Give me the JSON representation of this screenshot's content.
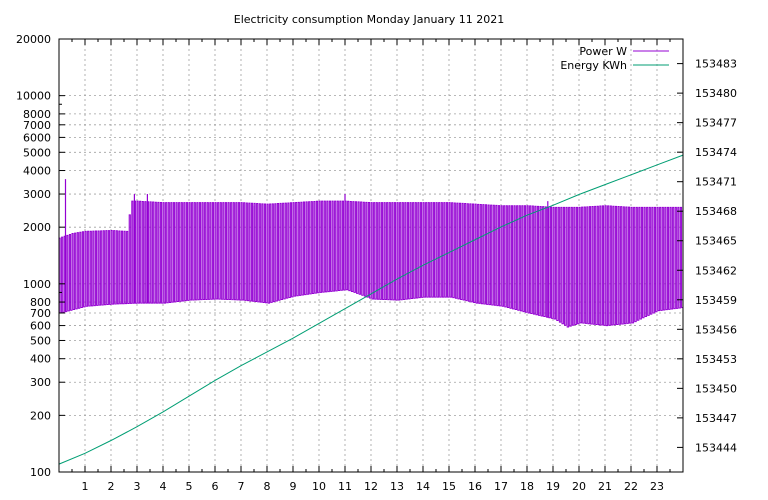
{
  "chart_data": {
    "type": "line",
    "title": "Electricity consumption Monday January 11 2021",
    "xlabel": "",
    "ylabel": "",
    "y2label": "",
    "x_range": [
      0,
      24
    ],
    "x_ticks": [
      1,
      2,
      3,
      4,
      5,
      6,
      7,
      8,
      9,
      10,
      11,
      12,
      13,
      14,
      15,
      16,
      17,
      18,
      19,
      20,
      21,
      22,
      23
    ],
    "y_scale": "log",
    "y_range": [
      100,
      20000
    ],
    "y_ticks": [
      {
        "value": 100,
        "label": "100"
      },
      {
        "value": 200,
        "label": "200"
      },
      {
        "value": 300,
        "label": "300"
      },
      {
        "value": 400,
        "label": "400"
      },
      {
        "value": 500,
        "label": "500"
      },
      {
        "value": 600,
        "label": "600"
      },
      {
        "value": 700,
        "label": "700"
      },
      {
        "value": 800,
        "label": "800"
      },
      {
        "value": 1000,
        "label": "1000"
      },
      {
        "value": 2000,
        "label": "2000"
      },
      {
        "value": 3000,
        "label": "3000"
      },
      {
        "value": 4000,
        "label": "4000"
      },
      {
        "value": 5000,
        "label": "5000"
      },
      {
        "value": 6000,
        "label": "6000"
      },
      {
        "value": 7000,
        "label": "7000"
      },
      {
        "value": 8000,
        "label": "8000"
      },
      {
        "value": 10000,
        "label": "10000"
      },
      {
        "value": 20000,
        "label": "20000"
      }
    ],
    "y2_scale": "linear",
    "y2_range": [
      153441.5,
      153485.5
    ],
    "y2_ticks": [
      153444,
      153447,
      153450,
      153453,
      153456,
      153459,
      153462,
      153465,
      153468,
      153471,
      153474,
      153477,
      153480,
      153483
    ],
    "grid": true,
    "legend": "top-right",
    "series": [
      {
        "name": "Power W",
        "axis": "y",
        "color": "#9400d3",
        "style": "oscillating",
        "cycle_hours": 0.1,
        "high_profile": {
          "x": [
            0,
            0.5,
            1,
            2,
            2.6,
            2.8,
            3,
            4,
            5,
            6,
            7,
            8,
            9,
            10,
            11,
            12,
            13,
            14,
            15,
            16,
            17,
            18,
            19,
            20,
            21,
            22,
            23,
            24
          ],
          "y": [
            1750,
            1850,
            1900,
            1920,
            1900,
            2750,
            2750,
            2700,
            2700,
            2700,
            2700,
            2650,
            2700,
            2750,
            2750,
            2700,
            2700,
            2700,
            2700,
            2650,
            2600,
            2600,
            2550,
            2550,
            2600,
            2550,
            2550,
            2550
          ]
        },
        "low_profile": {
          "x": [
            0,
            1,
            2,
            3,
            4,
            5,
            6,
            7,
            8,
            9,
            10,
            11,
            12,
            13,
            14,
            15,
            16,
            17,
            18,
            19,
            19.5,
            20,
            21,
            22,
            23,
            24
          ],
          "y": [
            700,
            760,
            780,
            790,
            790,
            820,
            830,
            820,
            790,
            860,
            900,
            930,
            830,
            820,
            850,
            850,
            790,
            760,
            700,
            650,
            590,
            620,
            600,
            620,
            720,
            750
          ]
        },
        "spikes": [
          {
            "x": 0.25,
            "y": 3600
          },
          {
            "x": 2.9,
            "y": 3000
          },
          {
            "x": 3.4,
            "y": 3000
          },
          {
            "x": 11.0,
            "y": 3000
          },
          {
            "x": 7.5,
            "y": 2600
          },
          {
            "x": 18.8,
            "y": 2750
          }
        ]
      },
      {
        "name": "Energy KWh",
        "axis": "y2",
        "color": "#009e73",
        "x": [
          0,
          1,
          2,
          3,
          4,
          5,
          6,
          7,
          8,
          9,
          10,
          11,
          12,
          13,
          14,
          15,
          16,
          17,
          18,
          19,
          20,
          21,
          22,
          23,
          24
        ],
        "y": [
          153442.3,
          153443.4,
          153444.7,
          153446.1,
          153447.6,
          153449.2,
          153450.8,
          153452.3,
          153453.7,
          153455.1,
          153456.6,
          153458.1,
          153459.6,
          153461.1,
          153462.5,
          153463.8,
          153465.1,
          153466.4,
          153467.6,
          153468.6,
          153469.7,
          153470.7,
          153471.7,
          153472.7,
          153473.7
        ]
      }
    ]
  }
}
